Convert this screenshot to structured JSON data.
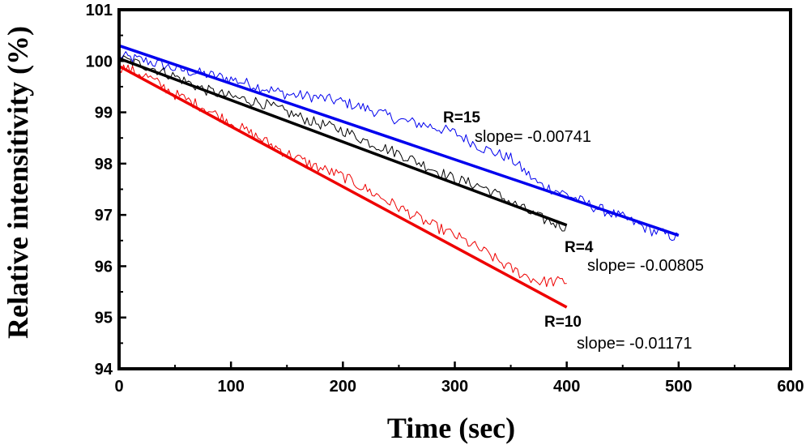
{
  "chart_data": {
    "type": "line",
    "title": "",
    "xlabel": "Time (sec)",
    "ylabel": "Relative intensitivity (%)",
    "xlim": [
      0,
      600
    ],
    "ylim": [
      94,
      101
    ],
    "xticks": [
      "0",
      "100",
      "200",
      "300",
      "400",
      "500",
      "600"
    ],
    "yticks": [
      "94",
      "95",
      "96",
      "97",
      "98",
      "99",
      "100",
      "101"
    ],
    "grid": false,
    "series": [
      {
        "name": "R=15",
        "color": "#0000ee",
        "x_end": 500,
        "slope": -0.00741,
        "fit": {
          "x": [
            0,
            500
          ],
          "y": [
            100.3,
            96.6
          ]
        },
        "data_points": [
          [
            0,
            100.1
          ],
          [
            25,
            100.0
          ],
          [
            50,
            99.85
          ],
          [
            75,
            99.75
          ],
          [
            100,
            99.65
          ],
          [
            125,
            99.5
          ],
          [
            150,
            99.35
          ],
          [
            175,
            99.3
          ],
          [
            200,
            99.2
          ],
          [
            225,
            99.05
          ],
          [
            250,
            98.85
          ],
          [
            275,
            98.75
          ],
          [
            300,
            98.6
          ],
          [
            325,
            98.3
          ],
          [
            350,
            98.1
          ],
          [
            375,
            97.6
          ],
          [
            400,
            97.4
          ],
          [
            425,
            97.15
          ],
          [
            450,
            96.95
          ],
          [
            475,
            96.7
          ],
          [
            500,
            96.55
          ]
        ],
        "label_text": "R=15",
        "slope_text": "slope= -0.00741"
      },
      {
        "name": "R=4",
        "color": "#000000",
        "x_end": 400,
        "slope": -0.00805,
        "fit": {
          "x": [
            0,
            400
          ],
          "y": [
            100.05,
            96.8
          ]
        },
        "data_points": [
          [
            0,
            100.05
          ],
          [
            25,
            99.9
          ],
          [
            50,
            99.7
          ],
          [
            75,
            99.45
          ],
          [
            100,
            99.3
          ],
          [
            125,
            99.2
          ],
          [
            150,
            99.0
          ],
          [
            175,
            98.8
          ],
          [
            200,
            98.65
          ],
          [
            225,
            98.4
          ],
          [
            250,
            98.2
          ],
          [
            275,
            97.95
          ],
          [
            300,
            97.7
          ],
          [
            325,
            97.55
          ],
          [
            350,
            97.25
          ],
          [
            375,
            96.95
          ],
          [
            400,
            96.75
          ]
        ],
        "label_text": "R=4",
        "slope_text": "slope= -0.00805"
      },
      {
        "name": "R=10",
        "color": "#ee0000",
        "x_end": 400,
        "slope": -0.01171,
        "fit": {
          "x": [
            0,
            400
          ],
          "y": [
            99.9,
            95.2
          ]
        },
        "data_points": [
          [
            0,
            99.9
          ],
          [
            25,
            99.7
          ],
          [
            50,
            99.35
          ],
          [
            75,
            99.1
          ],
          [
            100,
            98.8
          ],
          [
            125,
            98.5
          ],
          [
            150,
            98.2
          ],
          [
            175,
            97.95
          ],
          [
            200,
            97.75
          ],
          [
            225,
            97.45
          ],
          [
            250,
            97.15
          ],
          [
            275,
            96.85
          ],
          [
            300,
            96.6
          ],
          [
            325,
            96.3
          ],
          [
            350,
            95.95
          ],
          [
            375,
            95.7
          ],
          [
            400,
            95.7
          ]
        ],
        "label_text": "R=10",
        "slope_text": "slope= -0.01171"
      }
    ]
  }
}
